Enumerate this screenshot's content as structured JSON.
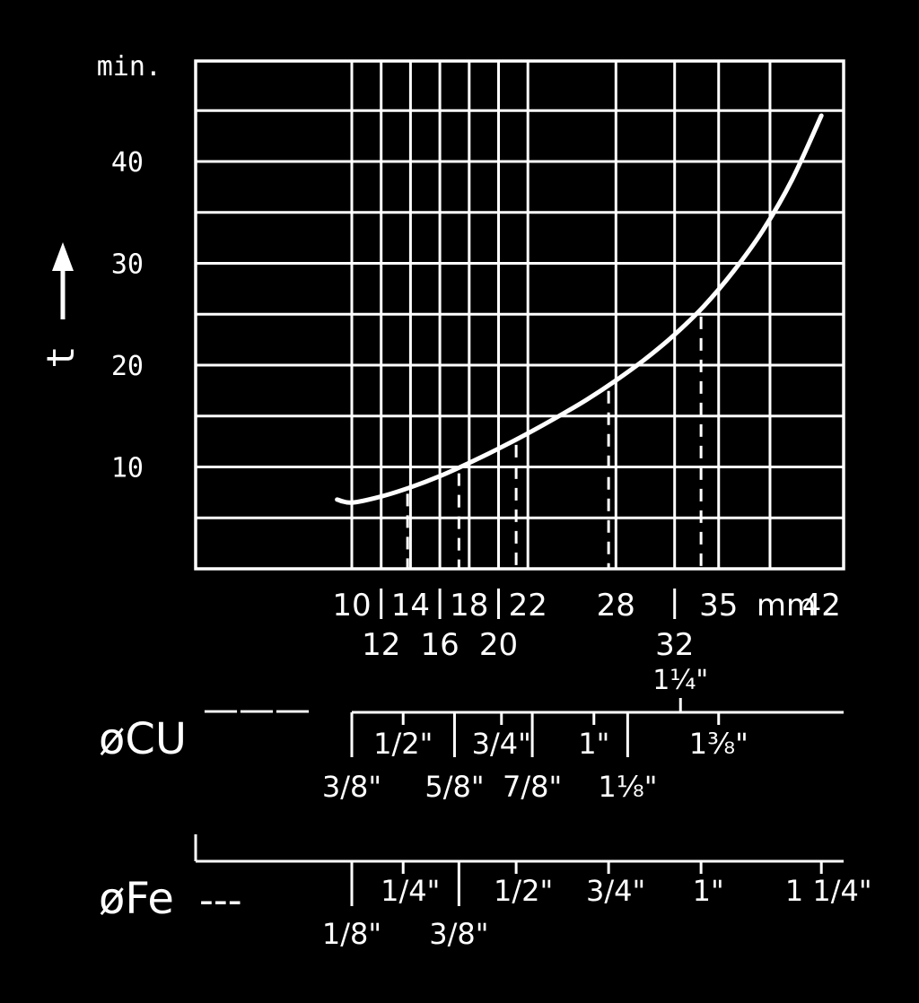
{
  "chart_data": {
    "type": "line",
    "y_unit": "min.",
    "ylabel": "t",
    "x_unit": "mm",
    "ylim": [
      0,
      50
    ],
    "xlim": [
      3,
      42
    ],
    "y_ticks": [
      10,
      20,
      30,
      40
    ],
    "x_ticks_row1": [
      10,
      14,
      18,
      22,
      28,
      35,
      42
    ],
    "x_ticks_row2": [
      12,
      16,
      20,
      32
    ],
    "series": [
      {
        "x": [
          9,
          10,
          12,
          14,
          16,
          18,
          20,
          22,
          24,
          26,
          28,
          30,
          32,
          34,
          36,
          38,
          40,
          42
        ],
        "values": [
          6.8,
          6.5,
          7.1,
          8.0,
          9.1,
          10.4,
          11.8,
          13.3,
          14.9,
          16.6,
          18.5,
          20.6,
          23.0,
          25.8,
          29.2,
          33.2,
          38.2,
          44.5
        ]
      }
    ],
    "dashed_markers": [
      {
        "x": 13.8,
        "y": 7.9
      },
      {
        "x": 17.3,
        "y": 9.9
      },
      {
        "x": 21.2,
        "y": 12.7
      },
      {
        "x": 27.5,
        "y": 18.0
      },
      {
        "x": 33.8,
        "y": 25.3
      }
    ]
  },
  "cu_scale": {
    "label": "øCU",
    "legend_line": "———",
    "sizes": [
      {
        "label": "3/8\"",
        "x": 10,
        "row": "below"
      },
      {
        "label": "1/2\"",
        "x": 13.5,
        "row": "above"
      },
      {
        "label": "5/8\"",
        "x": 17,
        "row": "below"
      },
      {
        "label": "3/4\"",
        "x": 20.2,
        "row": "above"
      },
      {
        "label": "7/8\"",
        "x": 22.3,
        "row": "below"
      },
      {
        "label": "1\"",
        "x": 26.5,
        "row": "above"
      },
      {
        "label": "1⅛\"",
        "x": 28.8,
        "row": "below"
      },
      {
        "label": "1¼\"",
        "x": 32.4,
        "row": "top"
      },
      {
        "label": "1⅜\"",
        "x": 35,
        "row": "above"
      }
    ]
  },
  "fe_scale": {
    "label": "øFe",
    "legend_line": "---",
    "sizes": [
      {
        "label": "1/8\"",
        "x": 10,
        "row": "below"
      },
      {
        "label": "1/4\"",
        "x": 13.5,
        "row": "above"
      },
      {
        "label": "3/8\"",
        "x": 17.3,
        "row": "below"
      },
      {
        "label": "1/2\"",
        "x": 21.2,
        "row": "above"
      },
      {
        "label": "3/4\"",
        "x": 27.5,
        "row": "above"
      },
      {
        "label": "1\"",
        "x": 33.8,
        "row": "above"
      },
      {
        "label": "1 1/4\"",
        "x": 42,
        "row": "above"
      }
    ]
  }
}
